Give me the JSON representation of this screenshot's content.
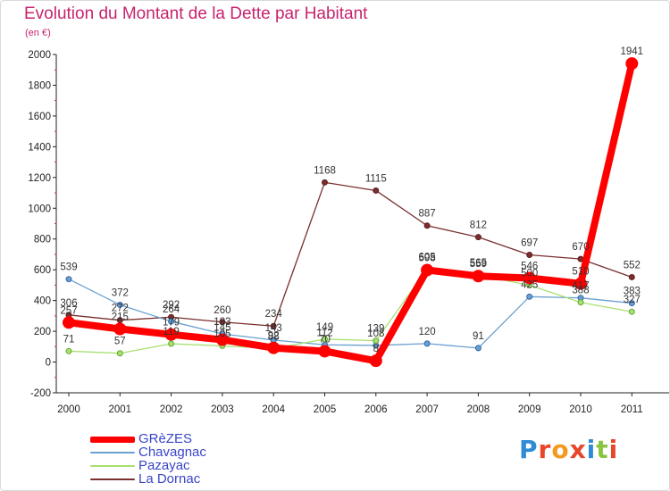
{
  "title": "Evolution du Montant de la Dette par Habitant",
  "subtitle": "(en €)",
  "logo": {
    "text": "Proxiti",
    "letter_colors": [
      "#2e8bd6",
      "#e8462a",
      "#f39a1e",
      "#e8462a",
      "#2e8bd6",
      "#8bc540",
      "#e8462a"
    ]
  },
  "chart_data": {
    "type": "line",
    "x": [
      "2000",
      "2001",
      "2002",
      "2003",
      "2004",
      "2005",
      "2006",
      "2007",
      "2008",
      "2009",
      "2010",
      "2011"
    ],
    "ylim": [
      -200,
      2000
    ],
    "yticks": [
      -200,
      0,
      200,
      400,
      600,
      800,
      1000,
      1200,
      1400,
      1600,
      1800,
      2000
    ],
    "grid": false,
    "legend_position": "bottom-left",
    "series": [
      {
        "name": "La Dornac",
        "color": "#7a2e2e",
        "values": [
          306,
          272,
          292,
          260,
          234,
          1168,
          1115,
          887,
          812,
          697,
          670,
          552
        ],
        "labels": [
          "306",
          "272",
          "292",
          "260",
          "234",
          "1168",
          "1115",
          "887",
          "812",
          "697",
          "670",
          "552"
        ]
      },
      {
        "name": "Chavagnac",
        "color": "#6aa0d0",
        "values": [
          539,
          372,
          264,
          183,
          143,
          112,
          108,
          120,
          91,
          425,
          417,
          383
        ],
        "labels": [
          "539",
          "372",
          "264",
          "183",
          "143",
          "112",
          "108",
          "120",
          "91",
          "425",
          "417",
          "383"
        ]
      },
      {
        "name": "Pazayac",
        "color": "#a8e070",
        "values": [
          71,
          57,
          119,
          105,
          88,
          149,
          139,
          605,
          565,
          500,
          388,
          327
        ],
        "labels": [
          "71",
          "57",
          "119",
          "105",
          "88",
          "149",
          "139",
          "605",
          "565",
          "500",
          "388",
          "327"
        ]
      },
      {
        "name": "GRèZES",
        "color": "#ff0000",
        "values": [
          257,
          215,
          179,
          145,
          92,
          70,
          8,
          598,
          559,
          546,
          510,
          1941
        ],
        "labels": [
          "257",
          "215",
          "179",
          "145",
          "92",
          "70",
          "8",
          "598",
          "559",
          "546",
          "510",
          "1941"
        ]
      }
    ]
  }
}
